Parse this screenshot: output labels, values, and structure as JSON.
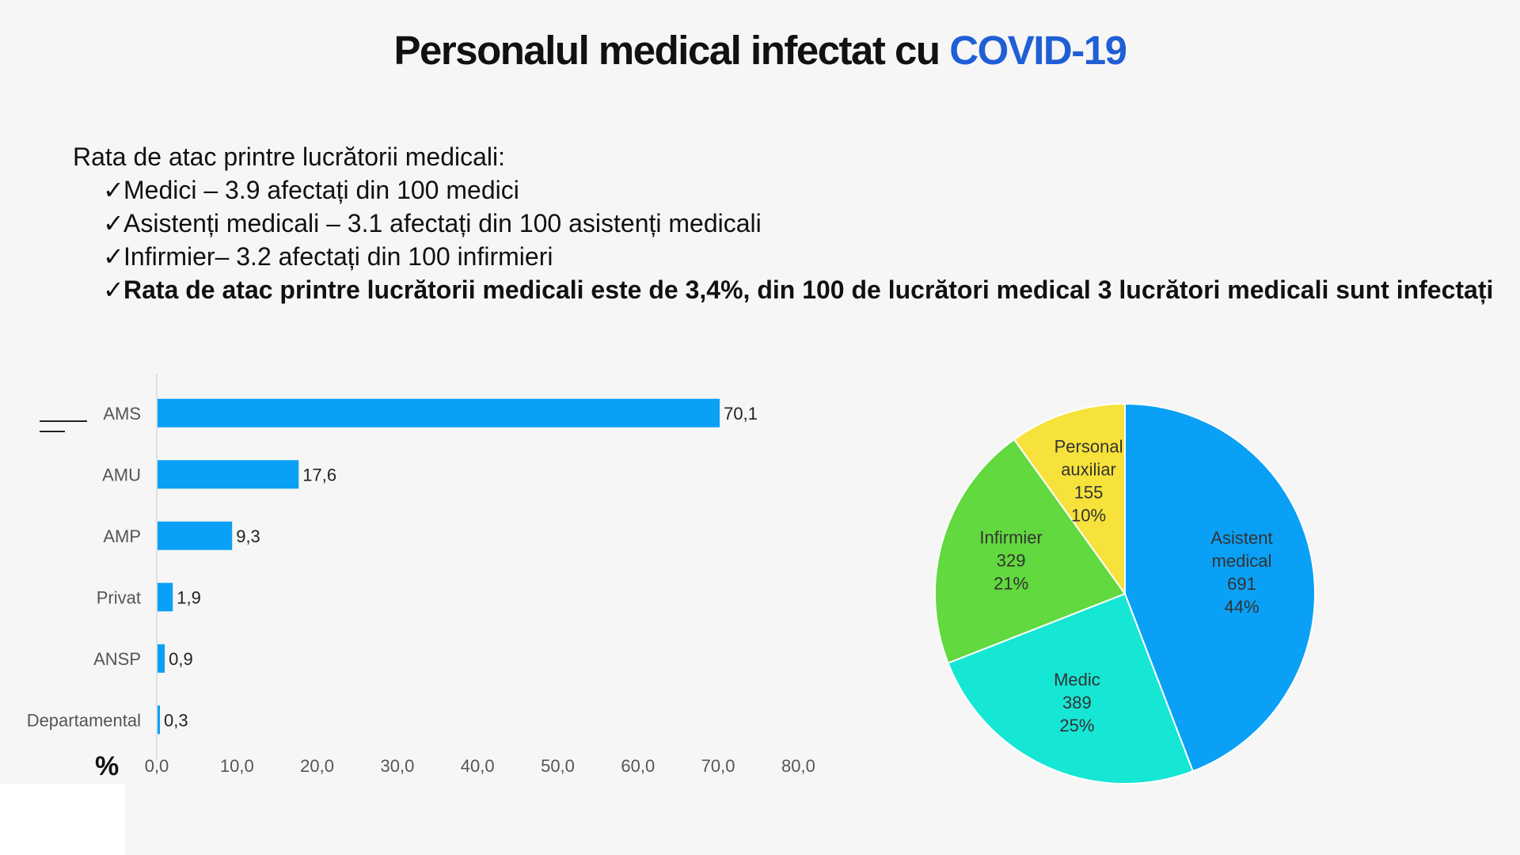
{
  "title": {
    "main": "Personalul medical infectat cu",
    "accent": "COVID-19"
  },
  "colors": {
    "accent": "#1f5fd6",
    "bar": "#0aa0f5",
    "pie": [
      "#0aa0f5",
      "#16e6d4",
      "#62d93e",
      "#f6e23a"
    ]
  },
  "bullets": {
    "intro": "Rata de atac printre lucrătorii medicali:",
    "check_icon": "✓",
    "items": [
      {
        "text": "Medici – 3.9 afectați din 100 medici",
        "bold": false
      },
      {
        "text": "Asistenți medicali – 3.1 afectați din 100 asistenți medicali",
        "bold": false
      },
      {
        "text": "Infirmier– 3.2 afectați din 100 infirmieri",
        "bold": false
      },
      {
        "text": "Rata de atac printre lucrătorii medicali este de 3,4%,  din 100 de lucrători medical  3 lucrători medicali sunt infectați",
        "bold": true
      }
    ]
  },
  "chart_data": [
    {
      "type": "bar",
      "orientation": "horizontal",
      "categories": [
        "AMS",
        "AMU",
        "AMP",
        "Privat",
        "ANSP",
        "Departamental"
      ],
      "values": [
        70.1,
        17.6,
        9.3,
        1.9,
        0.9,
        0.3
      ],
      "value_labels": [
        "70,1",
        "17,6",
        "9,3",
        "1,9",
        "0,9",
        "0,3"
      ],
      "xlim": [
        0,
        80
      ],
      "xticks": [
        "0,0",
        "10,0",
        "20,0",
        "30,0",
        "40,0",
        "50,0",
        "60,0",
        "70,0",
        "80,0"
      ],
      "unit_label": "%",
      "grid": false
    },
    {
      "type": "pie",
      "slices": [
        {
          "label_lines": [
            "Asistent",
            "medical"
          ],
          "count": "691",
          "value": 691,
          "percent": "44%"
        },
        {
          "label_lines": [
            "Medic"
          ],
          "count": "389",
          "value": 389,
          "percent": "25%"
        },
        {
          "label_lines": [
            "Infirmier"
          ],
          "count": "329",
          "value": 329,
          "percent": "21%"
        },
        {
          "label_lines": [
            "Personal",
            "auxiliar"
          ],
          "count": "155",
          "value": 155,
          "percent": "10%"
        }
      ],
      "legend": "none"
    }
  ]
}
